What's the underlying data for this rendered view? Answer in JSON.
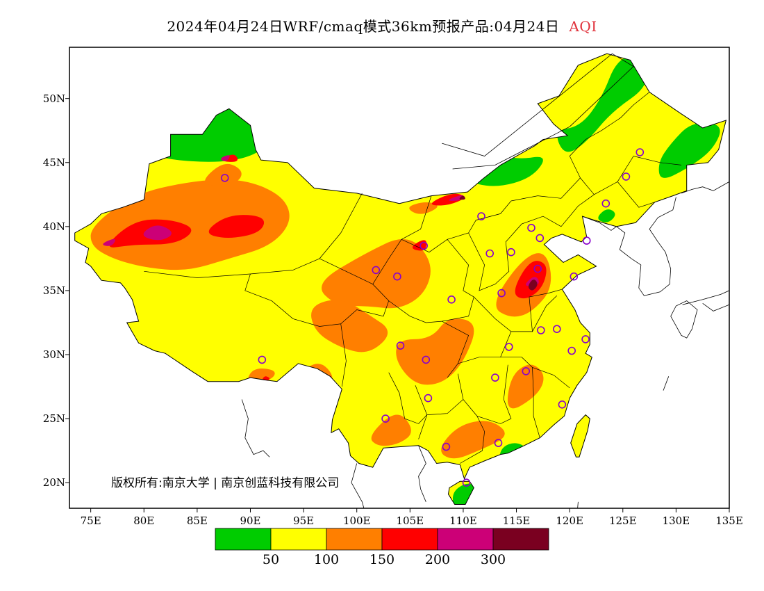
{
  "title": "2024年04月24日WRF/cmaq模式36km预报产品:04月24日",
  "variable": "AQI",
  "copyright": "版权所有:南京大学 | 南京创蓝科技有限公司",
  "axes": {
    "lon_range": [
      73,
      135
    ],
    "lat_range": [
      18,
      54
    ],
    "lon_ticks": [
      {
        "value": 75,
        "label": "75E"
      },
      {
        "value": 80,
        "label": "80E"
      },
      {
        "value": 85,
        "label": "85E"
      },
      {
        "value": 90,
        "label": "90E"
      },
      {
        "value": 95,
        "label": "95E"
      },
      {
        "value": 100,
        "label": "100E"
      },
      {
        "value": 105,
        "label": "105E"
      },
      {
        "value": 110,
        "label": "110E"
      },
      {
        "value": 115,
        "label": "115E"
      },
      {
        "value": 120,
        "label": "120E"
      },
      {
        "value": 125,
        "label": "125E"
      },
      {
        "value": 130,
        "label": "130E"
      },
      {
        "value": 135,
        "label": "135E"
      }
    ],
    "lat_ticks": [
      {
        "value": 20,
        "label": "20N"
      },
      {
        "value": 25,
        "label": "25N"
      },
      {
        "value": 30,
        "label": "30N"
      },
      {
        "value": 35,
        "label": "35N"
      },
      {
        "value": 40,
        "label": "40N"
      },
      {
        "value": 45,
        "label": "45N"
      },
      {
        "value": 50,
        "label": "50N"
      }
    ]
  },
  "legend": {
    "bins": [
      {
        "color": "#00cc00"
      },
      {
        "color": "#ffff00"
      },
      {
        "color": "#ff7f00"
      },
      {
        "color": "#ff0000"
      },
      {
        "color": "#cc0077"
      },
      {
        "color": "#7a0020"
      }
    ],
    "labels": [
      "50",
      "100",
      "150",
      "200",
      "300"
    ]
  },
  "colors": {
    "good": "#00cc00",
    "moderate": "#ffff00",
    "usg": "#ff7f00",
    "unhealthy": "#ff0000",
    "very_unhealthy": "#cc0077",
    "hazardous": "#7a0020",
    "station": "#8800cc"
  },
  "stations": [
    [
      87.6,
      43.8
    ],
    [
      91.1,
      29.6
    ],
    [
      101.8,
      36.6
    ],
    [
      103.8,
      36.1
    ],
    [
      106.3,
      38.5
    ],
    [
      111.7,
      40.8
    ],
    [
      104.1,
      30.7
    ],
    [
      106.5,
      29.6
    ],
    [
      102.7,
      25.0
    ],
    [
      106.7,
      26.6
    ],
    [
      108.9,
      34.3
    ],
    [
      113.6,
      34.8
    ],
    [
      114.5,
      38.0
    ],
    [
      116.4,
      39.9
    ],
    [
      117.2,
      39.1
    ],
    [
      112.5,
      37.9
    ],
    [
      117.0,
      36.7
    ],
    [
      118.8,
      32.0
    ],
    [
      117.3,
      31.9
    ],
    [
      114.3,
      30.6
    ],
    [
      113.0,
      28.2
    ],
    [
      115.9,
      28.7
    ],
    [
      119.3,
      26.1
    ],
    [
      120.2,
      30.3
    ],
    [
      121.5,
      31.2
    ],
    [
      113.3,
      23.1
    ],
    [
      108.4,
      22.8
    ],
    [
      110.3,
      20.0
    ],
    [
      123.4,
      41.8
    ],
    [
      125.3,
      43.9
    ],
    [
      126.6,
      45.8
    ],
    [
      121.6,
      38.9
    ],
    [
      120.4,
      36.1
    ]
  ]
}
